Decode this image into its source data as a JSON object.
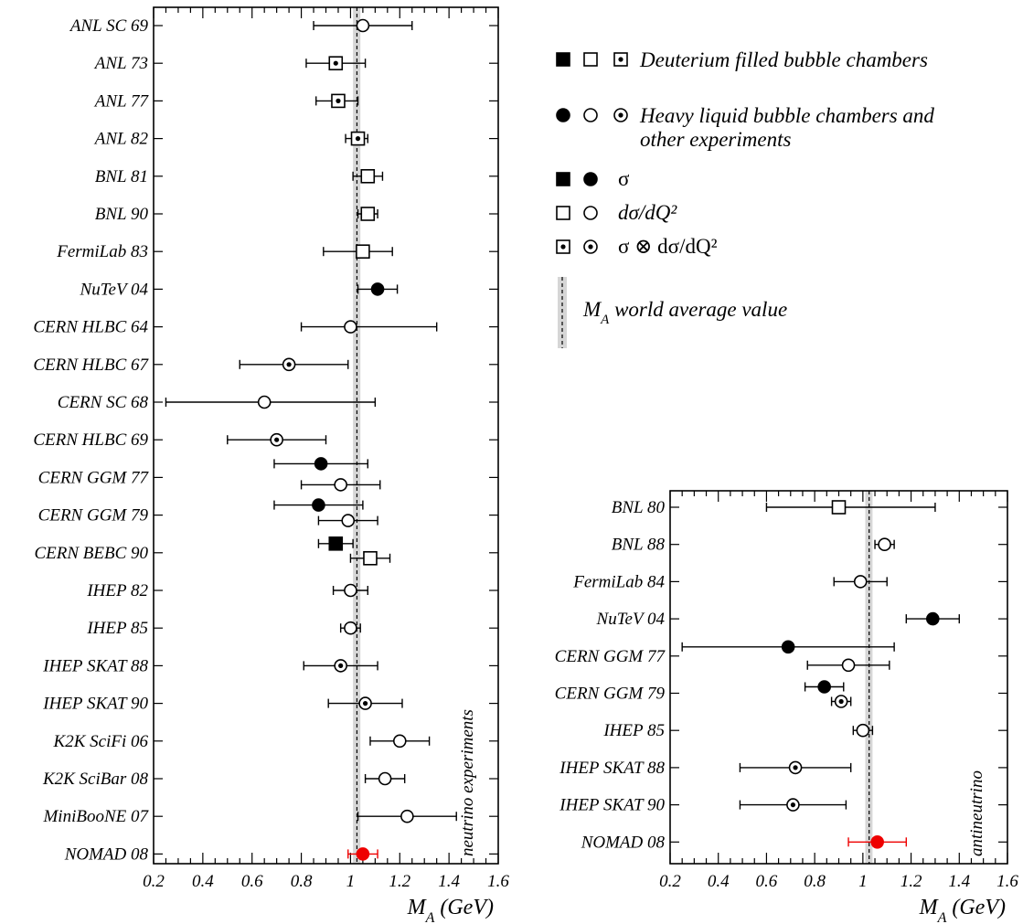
{
  "chart_data": [
    {
      "type": "scatter",
      "panel": "neutrino",
      "side_label": "neutrino experiments",
      "xlabel": "M_A (GeV)",
      "xlim": [
        0.2,
        1.6
      ],
      "xticks": [
        "0.2",
        "0.4",
        "0.6",
        "0.8",
        "1",
        "1.2",
        "1.4",
        "1.6"
      ],
      "band": [
        1.01,
        1.04
      ],
      "dashed_line": 1.026,
      "rows": [
        {
          "label": "ANL SC 69",
          "points": [
            {
              "value": 1.05,
              "err_lo": 0.2,
              "err_hi": 0.2,
              "shape": "circle",
              "fill": "open"
            }
          ]
        },
        {
          "label": "ANL 73",
          "points": [
            {
              "value": 0.94,
              "err_lo": 0.12,
              "err_hi": 0.12,
              "shape": "square",
              "fill": "dot"
            }
          ]
        },
        {
          "label": "ANL 77",
          "points": [
            {
              "value": 0.95,
              "err_lo": 0.09,
              "err_hi": 0.08,
              "shape": "square",
              "fill": "dot"
            }
          ]
        },
        {
          "label": "ANL 82",
          "points": [
            {
              "value": 1.03,
              "err_lo": 0.05,
              "err_hi": 0.04,
              "shape": "square",
              "fill": "dot"
            }
          ]
        },
        {
          "label": "BNL 81",
          "points": [
            {
              "value": 1.07,
              "err_lo": 0.06,
              "err_hi": 0.06,
              "shape": "square",
              "fill": "open"
            }
          ]
        },
        {
          "label": "BNL 90",
          "points": [
            {
              "value": 1.07,
              "err_lo": 0.04,
              "err_hi": 0.04,
              "shape": "square",
              "fill": "open"
            }
          ]
        },
        {
          "label": "FermiLab 83",
          "points": [
            {
              "value": 1.05,
              "err_lo": 0.16,
              "err_hi": 0.12,
              "shape": "square",
              "fill": "open"
            }
          ]
        },
        {
          "label": "NuTeV 04",
          "points": [
            {
              "value": 1.11,
              "err_lo": 0.08,
              "err_hi": 0.08,
              "shape": "circle",
              "fill": "filled"
            }
          ]
        },
        {
          "label": "CERN HLBC 64",
          "points": [
            {
              "value": 1.0,
              "err_lo": 0.2,
              "err_hi": 0.35,
              "shape": "circle",
              "fill": "open"
            }
          ]
        },
        {
          "label": "CERN HLBC 67",
          "points": [
            {
              "value": 0.75,
              "err_lo": 0.2,
              "err_hi": 0.24,
              "shape": "circle",
              "fill": "dot"
            }
          ]
        },
        {
          "label": "CERN SC 68",
          "points": [
            {
              "value": 0.65,
              "err_lo": 0.4,
              "err_hi": 0.45,
              "shape": "circle",
              "fill": "open"
            }
          ]
        },
        {
          "label": "CERN HLBC 69",
          "points": [
            {
              "value": 0.7,
              "err_lo": 0.2,
              "err_hi": 0.2,
              "shape": "circle",
              "fill": "dot"
            }
          ]
        },
        {
          "label": "CERN GGM 77",
          "points": [
            {
              "value": 0.88,
              "err_lo": 0.19,
              "err_hi": 0.19,
              "shape": "circle",
              "fill": "filled",
              "dy": -15
            },
            {
              "value": 0.96,
              "err_lo": 0.16,
              "err_hi": 0.16,
              "shape": "circle",
              "fill": "open",
              "dy": 8
            }
          ]
        },
        {
          "label": "CERN GGM 79",
          "points": [
            {
              "value": 0.87,
              "err_lo": 0.18,
              "err_hi": 0.18,
              "shape": "circle",
              "fill": "filled",
              "dy": -11
            },
            {
              "value": 0.99,
              "err_lo": 0.12,
              "err_hi": 0.12,
              "shape": "circle",
              "fill": "open",
              "dy": 6
            }
          ]
        },
        {
          "label": "CERN BEBC 90",
          "points": [
            {
              "value": 0.94,
              "err_lo": 0.07,
              "err_hi": 0.07,
              "shape": "square",
              "fill": "filled",
              "dy": -10
            },
            {
              "value": 1.08,
              "err_lo": 0.08,
              "err_hi": 0.08,
              "shape": "square",
              "fill": "open",
              "dy": 6
            }
          ]
        },
        {
          "label": "IHEP 82",
          "points": [
            {
              "value": 1.0,
              "err_lo": 0.07,
              "err_hi": 0.07,
              "shape": "circle",
              "fill": "open"
            }
          ]
        },
        {
          "label": "IHEP 85",
          "points": [
            {
              "value": 1.0,
              "err_lo": 0.04,
              "err_hi": 0.04,
              "shape": "circle",
              "fill": "open"
            }
          ]
        },
        {
          "label": "IHEP SKAT 88",
          "points": [
            {
              "value": 0.96,
              "err_lo": 0.15,
              "err_hi": 0.15,
              "shape": "circle",
              "fill": "dot"
            }
          ]
        },
        {
          "label": "IHEP SKAT 90",
          "points": [
            {
              "value": 1.06,
              "err_lo": 0.15,
              "err_hi": 0.15,
              "shape": "circle",
              "fill": "dot"
            }
          ]
        },
        {
          "label": "K2K SciFi 06",
          "points": [
            {
              "value": 1.2,
              "err_lo": 0.12,
              "err_hi": 0.12,
              "shape": "circle",
              "fill": "open"
            }
          ]
        },
        {
          "label": "K2K SciBar 08",
          "points": [
            {
              "value": 1.14,
              "err_lo": 0.08,
              "err_hi": 0.08,
              "shape": "circle",
              "fill": "open"
            }
          ]
        },
        {
          "label": "MiniBooNE 07",
          "points": [
            {
              "value": 1.23,
              "err_lo": 0.2,
              "err_hi": 0.2,
              "shape": "circle",
              "fill": "open"
            }
          ]
        },
        {
          "label": "NOMAD 08",
          "points": [
            {
              "value": 1.05,
              "err_lo": 0.06,
              "err_hi": 0.06,
              "shape": "circle",
              "fill": "filled",
              "color": "#ee0000"
            }
          ]
        }
      ]
    },
    {
      "type": "scatter",
      "panel": "antineutrino",
      "side_label": "antineutrino",
      "xlabel": "M_A (GeV)",
      "xlim": [
        0.2,
        1.6
      ],
      "xticks": [
        "0.2",
        "0.4",
        "0.6",
        "0.8",
        "1",
        "1.2",
        "1.4",
        "1.6"
      ],
      "band": [
        1.01,
        1.04
      ],
      "dashed_line": 1.026,
      "rows": [
        {
          "label": "BNL 80",
          "points": [
            {
              "value": 0.9,
              "err_lo": 0.3,
              "err_hi": 0.4,
              "shape": "square",
              "fill": "open"
            }
          ]
        },
        {
          "label": "BNL 88",
          "points": [
            {
              "value": 1.09,
              "err_lo": 0.04,
              "err_hi": 0.04,
              "shape": "circle",
              "fill": "open"
            }
          ]
        },
        {
          "label": "FermiLab 84",
          "points": [
            {
              "value": 0.99,
              "err_lo": 0.11,
              "err_hi": 0.11,
              "shape": "circle",
              "fill": "open"
            }
          ]
        },
        {
          "label": "NuTeV 04",
          "points": [
            {
              "value": 1.29,
              "err_lo": 0.11,
              "err_hi": 0.11,
              "shape": "circle",
              "fill": "filled"
            }
          ]
        },
        {
          "label": "CERN GGM 77",
          "points": [
            {
              "value": 0.69,
              "err_lo": 0.44,
              "err_hi": 0.44,
              "shape": "circle",
              "fill": "filled",
              "dy": -10
            },
            {
              "value": 0.94,
              "err_lo": 0.17,
              "err_hi": 0.17,
              "shape": "circle",
              "fill": "open",
              "dy": 10
            }
          ]
        },
        {
          "label": "CERN GGM 79",
          "points": [
            {
              "value": 0.84,
              "err_lo": 0.08,
              "err_hi": 0.08,
              "shape": "circle",
              "fill": "filled",
              "dy": -7
            },
            {
              "value": 0.91,
              "err_lo": 0.04,
              "err_hi": 0.04,
              "shape": "circle",
              "fill": "dot",
              "dy": 9
            }
          ]
        },
        {
          "label": "IHEP 85",
          "points": [
            {
              "value": 1.0,
              "err_lo": 0.04,
              "err_hi": 0.04,
              "shape": "circle",
              "fill": "open"
            }
          ]
        },
        {
          "label": "IHEP SKAT 88",
          "points": [
            {
              "value": 0.72,
              "err_lo": 0.23,
              "err_hi": 0.23,
              "shape": "circle",
              "fill": "dot"
            }
          ]
        },
        {
          "label": "IHEP SKAT 90",
          "points": [
            {
              "value": 0.71,
              "err_lo": 0.22,
              "err_hi": 0.22,
              "shape": "circle",
              "fill": "dot"
            }
          ]
        },
        {
          "label": "NOMAD 08",
          "points": [
            {
              "value": 1.06,
              "err_lo": 0.12,
              "err_hi": 0.12,
              "shape": "circle",
              "fill": "filled",
              "color": "#ee0000"
            }
          ]
        }
      ]
    }
  ],
  "legend": {
    "deuterium": "Deuterium filled bubble chambers",
    "heavy_line1": "Heavy liquid bubble chambers and",
    "heavy_line2": "other experiments",
    "sigma": "σ",
    "dsigma": "dσ/dQ²",
    "both": "σ ⊗ dσ/dQ²",
    "world_avg": "M_A world average value"
  }
}
